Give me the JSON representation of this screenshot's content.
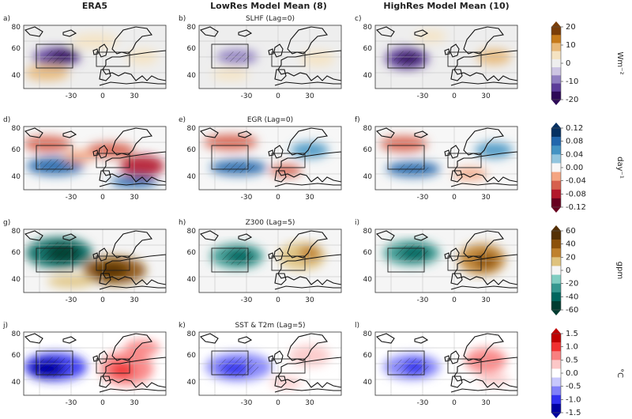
{
  "columns": [
    "ERA5",
    "LowRes Model Mean (8)",
    "HighRes Model Mean (10)"
  ],
  "panel_letters": [
    "a)",
    "b)",
    "c)",
    "d)",
    "e)",
    "f)",
    "g)",
    "h)",
    "i)",
    "j)",
    "k)",
    "l)"
  ],
  "row_titles": [
    "SLHF (Lag=0)",
    "EGR (Lag=0)",
    "Z300 (Lag=5)",
    "SST & T2m (Lag=5)"
  ],
  "y_ticks": [
    "80",
    "60",
    "40"
  ],
  "x_ticks": [
    "-30",
    "0",
    "30"
  ],
  "colorbars": [
    {
      "unit": "Wm⁻²",
      "ticks": [
        "20",
        "10",
        "0",
        "-10",
        "-20"
      ],
      "colors": [
        "#7a3d08",
        "#c67a1a",
        "#e8b877",
        "#f5e3c2",
        "#eeeeee",
        "#ccc4e2",
        "#8f7ec0",
        "#5b3c99",
        "#2d0a57"
      ]
    },
    {
      "unit": "day⁻¹",
      "ticks": [
        "0.12",
        "0.08",
        "0.04",
        "0.00",
        "-0.04",
        "-0.08",
        "-0.12"
      ],
      "colors": [
        "#053061",
        "#2166ac",
        "#4393c3",
        "#92c5de",
        "#f7f7f7",
        "#f4a582",
        "#d6604d",
        "#b2182b",
        "#67001f"
      ]
    },
    {
      "unit": "gpm",
      "ticks": [
        "60",
        "40",
        "20",
        "0",
        "-20",
        "-40",
        "-60"
      ],
      "colors": [
        "#543005",
        "#8c510a",
        "#bf812d",
        "#dfc27d",
        "#f5f5f5",
        "#80cdc1",
        "#35978f",
        "#01665e",
        "#003c30"
      ]
    },
    {
      "unit": "°C",
      "ticks": [
        "1.5",
        "1.0",
        "0.5",
        "0.0",
        "-0.5",
        "-1.0",
        "-1.5"
      ],
      "colors": [
        "#c00000",
        "#f03030",
        "#f88080",
        "#fcc8c8",
        "#ffffff",
        "#c8c8fc",
        "#8080f8",
        "#3030f0",
        "#0000a0"
      ]
    }
  ]
}
